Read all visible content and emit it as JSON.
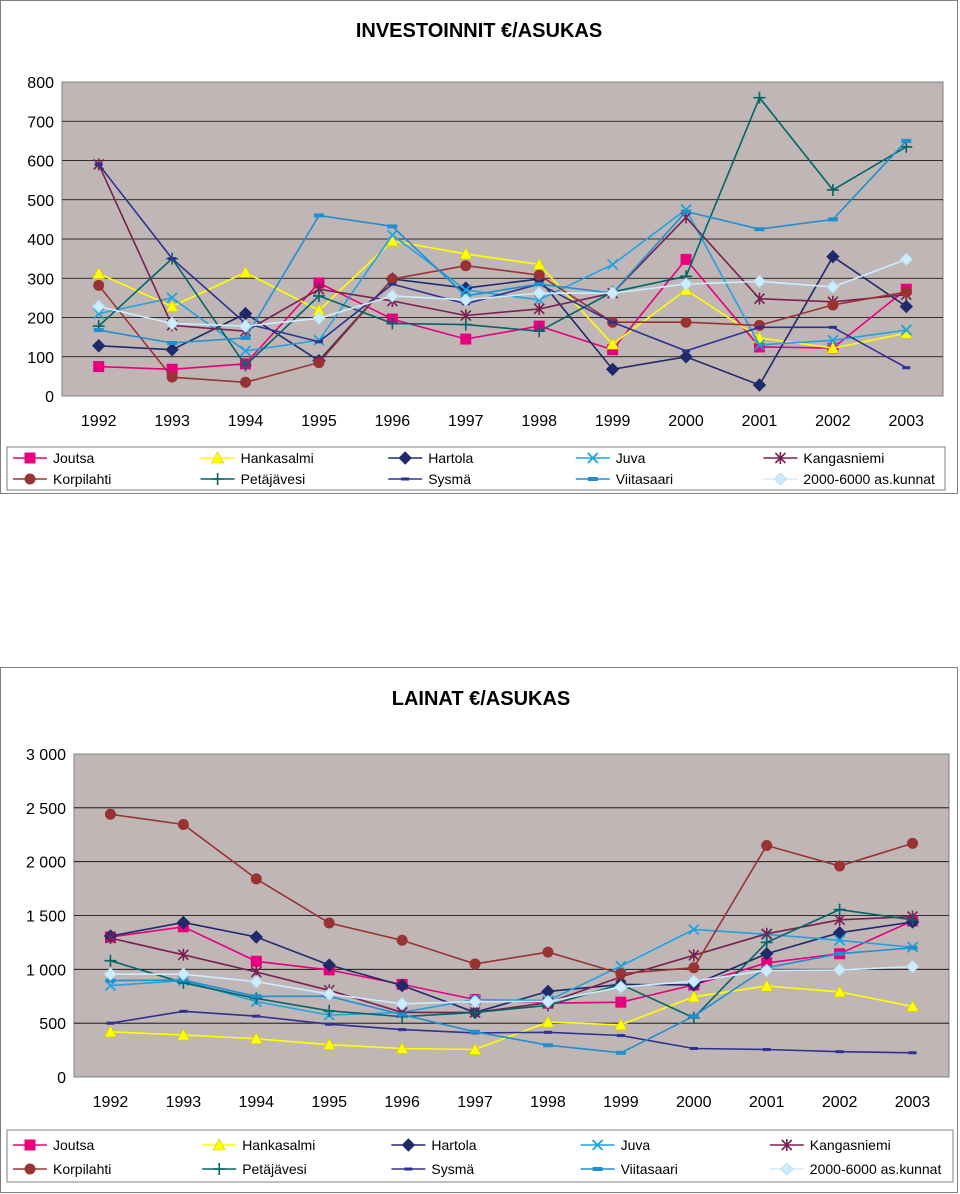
{
  "chart_data": [
    {
      "type": "line",
      "title": "INVESTOINNIT €/ASUKAS",
      "xlabel": "",
      "ylabel": "",
      "ylim": [
        0,
        800
      ],
      "yticks": [
        "0",
        "100",
        "200",
        "300",
        "400",
        "500",
        "600",
        "700",
        "800"
      ],
      "categories": [
        "1992",
        "1993",
        "1994",
        "1995",
        "1996",
        "1997",
        "1998",
        "1999",
        "2000",
        "2001",
        "2002",
        "2003"
      ],
      "series": [
        {
          "name": "Joutsa",
          "color": "#e6007e",
          "marker": "square",
          "values": [
            75,
            68,
            82,
            288,
            196,
            145,
            178,
            118,
            348,
            125,
            122,
            272
          ]
        },
        {
          "name": "Hankasalmi",
          "color": "#ffff00",
          "marker": "triangle",
          "values": [
            312,
            228,
            315,
            218,
            395,
            362,
            335,
            132,
            270,
            148,
            122,
            160
          ]
        },
        {
          "name": "Hartola",
          "color": "#1f2a6b",
          "marker": "diamond",
          "values": [
            128,
            118,
            210,
            90,
            298,
            275,
            298,
            68,
            100,
            28,
            355,
            228
          ]
        },
        {
          "name": "Juva",
          "color": "#1fa4e0",
          "marker": "x",
          "values": [
            210,
            250,
            115,
            142,
            410,
            270,
            245,
            335,
            475,
            130,
            142,
            168
          ]
        },
        {
          "name": "Kangasniemi",
          "color": "#7a2050",
          "marker": "star",
          "values": [
            590,
            180,
            165,
            272,
            242,
            205,
            222,
            262,
            455,
            248,
            240,
            258
          ]
        },
        {
          "name": "Korpilahti",
          "color": "#993333",
          "marker": "circle",
          "values": [
            282,
            48,
            35,
            85,
            298,
            332,
            308,
            188,
            188,
            180,
            232,
            265
          ]
        },
        {
          "name": "Petäjävesi",
          "color": "#006666",
          "marker": "plus",
          "values": [
            178,
            350,
            78,
            255,
            185,
            182,
            165,
            265,
            305,
            760,
            525,
            635
          ]
        },
        {
          "name": "Sysmä",
          "color": "#2e3192",
          "marker": "dash",
          "values": [
            590,
            350,
            185,
            138,
            285,
            235,
            285,
            188,
            115,
            175,
            175,
            72
          ]
        },
        {
          "name": "Viitasaari",
          "color": "#1f8fd0",
          "marker": "bar",
          "values": [
            168,
            135,
            148,
            460,
            432,
            255,
            285,
            262,
            470,
            425,
            450,
            650
          ]
        },
        {
          "name": "2000-6000 as.kunnat",
          "color": "#ccecff",
          "marker": "diamond",
          "values": [
            228,
            185,
            178,
            198,
            255,
            245,
            262,
            262,
            285,
            292,
            278,
            348
          ]
        }
      ]
    },
    {
      "type": "line",
      "title": "LAINAT €/ASUKAS",
      "xlabel": "",
      "ylabel": "",
      "ylim": [
        0,
        3000
      ],
      "yticks": [
        "0",
        "500",
        "1 000",
        "1 500",
        "2 000",
        "2 500",
        "3 000"
      ],
      "categories": [
        "1992",
        "1993",
        "1994",
        "1995",
        "1996",
        "1997",
        "1998",
        "1999",
        "2000",
        "2001",
        "2002",
        "2003"
      ],
      "series": [
        {
          "name": "Joutsa",
          "color": "#e6007e",
          "marker": "square",
          "values": [
            1300,
            1395,
            1075,
            995,
            860,
            720,
            685,
            695,
            855,
            1060,
            1145,
            1450
          ]
        },
        {
          "name": "Hankasalmi",
          "color": "#ffff00",
          "marker": "triangle",
          "values": [
            420,
            390,
            355,
            300,
            265,
            255,
            510,
            485,
            745,
            845,
            790,
            655
          ]
        },
        {
          "name": "Hartola",
          "color": "#1f2a6b",
          "marker": "diamond",
          "values": [
            1310,
            1435,
            1300,
            1040,
            850,
            600,
            795,
            860,
            855,
            1145,
            1340,
            1440
          ]
        },
        {
          "name": "Juva",
          "color": "#1fa4e0",
          "marker": "x",
          "values": [
            850,
            895,
            700,
            575,
            600,
            720,
            710,
            1030,
            1370,
            1325,
            1270,
            1205
          ]
        },
        {
          "name": "Kangasniemi",
          "color": "#7a2050",
          "marker": "star",
          "values": [
            1290,
            1135,
            975,
            805,
            600,
            600,
            690,
            930,
            1130,
            1330,
            1460,
            1490
          ]
        },
        {
          "name": "Korpilahti",
          "color": "#993333",
          "marker": "circle",
          "values": [
            2440,
            2345,
            1840,
            1430,
            1270,
            1050,
            1160,
            960,
            1015,
            2150,
            1960,
            2170
          ]
        },
        {
          "name": "Petäjävesi",
          "color": "#006666",
          "marker": "plus",
          "values": [
            1080,
            875,
            730,
            615,
            560,
            600,
            665,
            860,
            550,
            1250,
            1555,
            1460
          ]
        },
        {
          "name": "Sysmä",
          "color": "#2e3192",
          "marker": "dash",
          "values": [
            500,
            610,
            565,
            490,
            440,
            410,
            415,
            385,
            265,
            255,
            235,
            225
          ]
        },
        {
          "name": "Viitasaari",
          "color": "#1f8fd0",
          "marker": "bar",
          "values": [
            895,
            900,
            750,
            750,
            580,
            420,
            295,
            225,
            565,
            1015,
            1145,
            1200
          ]
        },
        {
          "name": "2000-6000 as.kunnat",
          "color": "#ccecff",
          "marker": "diamond",
          "values": [
            955,
            955,
            885,
            770,
            680,
            700,
            700,
            835,
            890,
            990,
            995,
            1025
          ]
        }
      ]
    }
  ]
}
